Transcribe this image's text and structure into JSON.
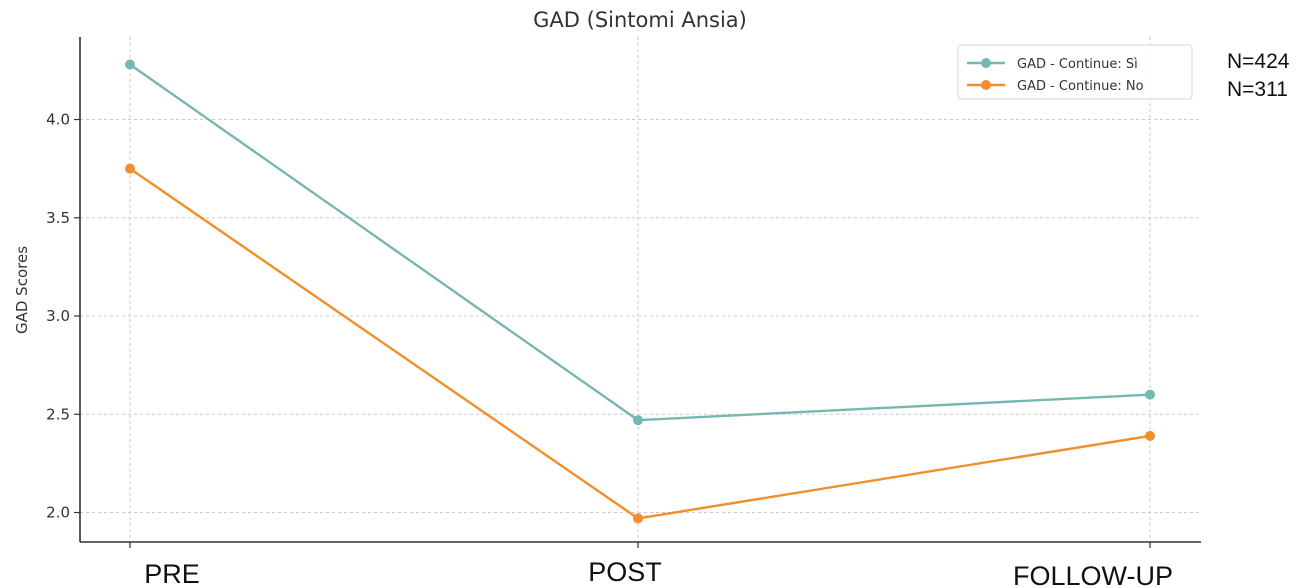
{
  "chart_data": {
    "type": "line",
    "title": "GAD (Sintomi Ansia)",
    "xlabel": "",
    "ylabel": "GAD Scores",
    "categories": [
      "PRE",
      "POST",
      "FOLLOW-UP"
    ],
    "ylim": [
      1.85,
      4.42
    ],
    "yticks": [
      "2.0",
      "2.5",
      "3.0",
      "3.5",
      "4.0"
    ],
    "grid": true,
    "legend_position": "top-right",
    "series": [
      {
        "name": "GAD - Continue: Sì",
        "values": [
          4.28,
          2.47,
          2.6
        ],
        "color": "#76b7b2"
      },
      {
        "name": "GAD - Continue: No",
        "values": [
          3.75,
          1.97,
          2.39
        ],
        "color": "#f28e2b"
      }
    ],
    "annotations": [
      "N=424",
      "N=311"
    ]
  }
}
